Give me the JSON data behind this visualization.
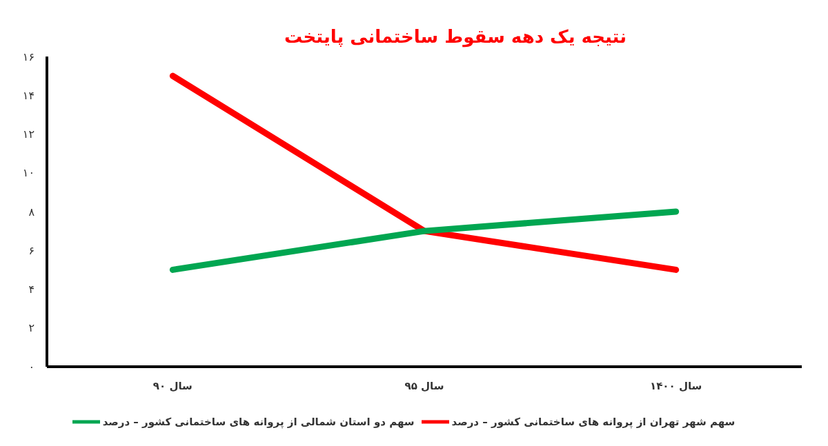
{
  "chart_data": {
    "type": "line",
    "title": "نتیجه یک دهه سقوط ساختمانی پایتخت",
    "categories": [
      "سال ۹۰",
      "سال ۹۵",
      "سال ۱۴۰۰"
    ],
    "series": [
      {
        "name": "سهم شهر تهران از پروانه های ساختمانی کشور – درصد",
        "color": "#ff0000",
        "values": [
          15,
          7,
          5
        ]
      },
      {
        "name": "سهم دو استان شمالی از پروانه های ساختمانی کشور – درصد",
        "color": "#00a651",
        "values": [
          5,
          7,
          8
        ]
      }
    ],
    "ylim": [
      0,
      16
    ],
    "yticks": [
      {
        "value": 0,
        "label": "۰"
      },
      {
        "value": 2,
        "label": "۲"
      },
      {
        "value": 4,
        "label": "۴"
      },
      {
        "value": 6,
        "label": "۶"
      },
      {
        "value": 8,
        "label": "۸"
      },
      {
        "value": 10,
        "label": "۱۰"
      },
      {
        "value": 12,
        "label": "۱۲"
      },
      {
        "value": 14,
        "label": "۱۴"
      },
      {
        "value": 16,
        "label": "۱۶"
      }
    ],
    "grid": false,
    "legend": "bottom",
    "marker": "none",
    "line_style": "solid"
  }
}
